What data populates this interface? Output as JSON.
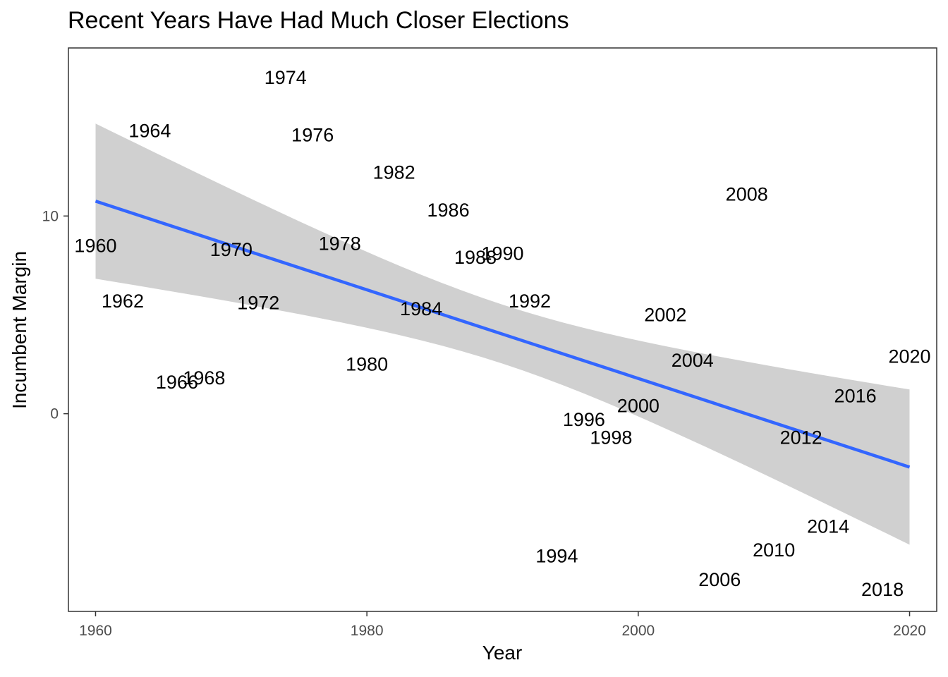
{
  "chart_data": {
    "type": "scatter",
    "title": "Recent Years Have Had Much Closer Elections",
    "xlabel": "Year",
    "ylabel": "Incumbent Margin",
    "xlim": [
      1958,
      2022
    ],
    "ylim": [
      -10,
      18.5
    ],
    "x_ticks": [
      1960,
      1980,
      2000,
      2020
    ],
    "y_ticks": [
      0,
      10
    ],
    "grid": false,
    "points": [
      {
        "year": 1960,
        "label": "1960",
        "margin": 8.5
      },
      {
        "year": 1962,
        "label": "1962",
        "margin": 5.7
      },
      {
        "year": 1964,
        "label": "1964",
        "margin": 14.3
      },
      {
        "year": 1966,
        "label": "1966",
        "margin": 1.6
      },
      {
        "year": 1968,
        "label": "1968",
        "margin": 1.8
      },
      {
        "year": 1970,
        "label": "1970",
        "margin": 8.3
      },
      {
        "year": 1972,
        "label": "1972",
        "margin": 5.6
      },
      {
        "year": 1974,
        "label": "1974",
        "margin": 17.0
      },
      {
        "year": 1976,
        "label": "1976",
        "margin": 14.1
      },
      {
        "year": 1978,
        "label": "1978",
        "margin": 8.6
      },
      {
        "year": 1980,
        "label": "1980",
        "margin": 2.5
      },
      {
        "year": 1982,
        "label": "1982",
        "margin": 12.2
      },
      {
        "year": 1984,
        "label": "1984",
        "margin": 5.3
      },
      {
        "year": 1986,
        "label": "1986",
        "margin": 10.3
      },
      {
        "year": 1988,
        "label": "1988",
        "margin": 7.9
      },
      {
        "year": 1990,
        "label": "1990",
        "margin": 8.1
      },
      {
        "year": 1992,
        "label": "1992",
        "margin": 5.7
      },
      {
        "year": 1994,
        "label": "1994",
        "margin": -7.2
      },
      {
        "year": 1996,
        "label": "1996",
        "margin": -0.3
      },
      {
        "year": 1998,
        "label": "1998",
        "margin": -1.2
      },
      {
        "year": 2000,
        "label": "2000",
        "margin": 0.4
      },
      {
        "year": 2002,
        "label": "2002",
        "margin": 5.0
      },
      {
        "year": 2004,
        "label": "2004",
        "margin": 2.7
      },
      {
        "year": 2006,
        "label": "2006",
        "margin": -8.4
      },
      {
        "year": 2008,
        "label": "2008",
        "margin": 11.1
      },
      {
        "year": 2010,
        "label": "2010",
        "margin": -6.9
      },
      {
        "year": 2012,
        "label": "2012",
        "margin": -1.2
      },
      {
        "year": 2014,
        "label": "2014",
        "margin": -5.7
      },
      {
        "year": 2016,
        "label": "2016",
        "margin": 0.9
      },
      {
        "year": 2018,
        "label": "2018",
        "margin": -8.9
      },
      {
        "year": 2020,
        "label": "2020",
        "margin": 2.9
      }
    ],
    "trend": {
      "method": "linear",
      "color": "#3366FF",
      "x": [
        1960,
        2020
      ],
      "fit": [
        10.75,
        -2.7
      ],
      "ci_lower": [
        6.8,
        -6.6
      ],
      "ci_upper": [
        14.7,
        1.2
      ],
      "ci_color": "#D0D0D0"
    },
    "colors": {
      "label_text": "#000000",
      "axis_text": "#4D4D4D",
      "panel_border": "#333333",
      "background": "#FFFFFF"
    }
  }
}
